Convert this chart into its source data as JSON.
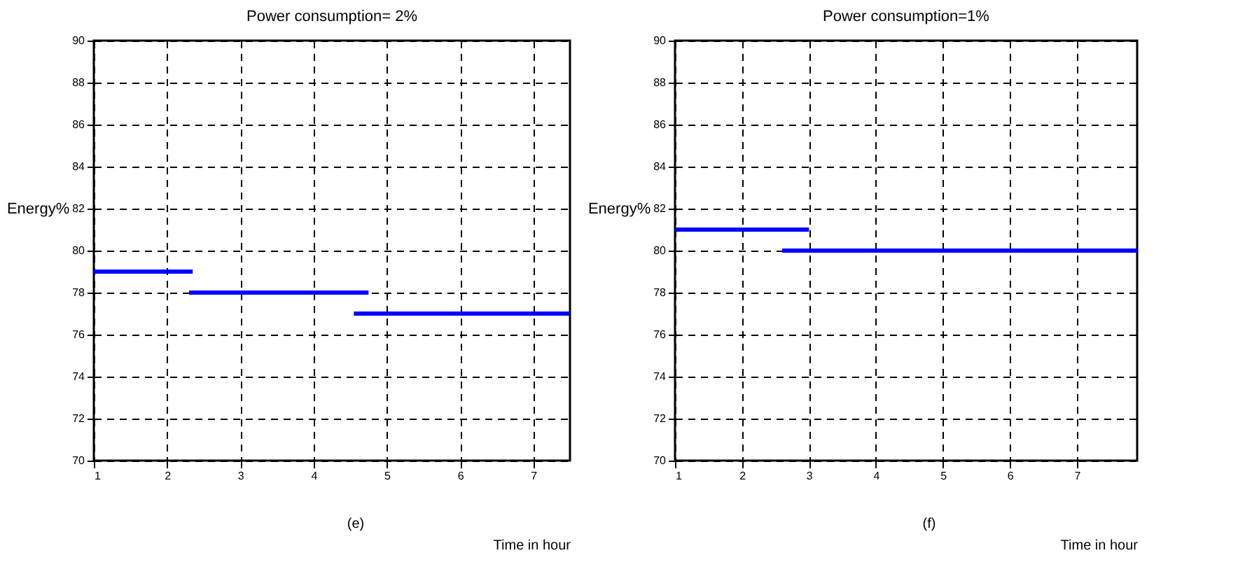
{
  "chart_data": [
    {
      "type": "line",
      "title": "Power consumption= 2%",
      "xlabel": "Time in hour",
      "ylabel": "Energy%",
      "annotations": [
        "(e)"
      ],
      "xlim": [
        1,
        7.5
      ],
      "xticks": [
        1,
        2,
        3,
        4,
        5,
        6,
        7
      ],
      "ylim": [
        70,
        90
      ],
      "yticks": [
        70,
        72,
        74,
        76,
        78,
        80,
        82,
        84,
        86,
        88,
        90
      ],
      "grid": true,
      "line_style": "solid",
      "series": [
        {
          "color": "#0000ff",
          "x": [
            1,
            2.35
          ],
          "values": [
            79,
            79
          ]
        },
        {
          "color": "#0000ff",
          "x": [
            2.3,
            4.75
          ],
          "values": [
            78,
            78
          ]
        },
        {
          "color": "#0000ff",
          "x": [
            4.55,
            7.5
          ],
          "values": [
            77,
            77
          ]
        }
      ]
    },
    {
      "type": "line",
      "title": "Power consumption=1%",
      "xlabel": "Time in hour",
      "ylabel": "Energy%",
      "annotations": [
        "(f)"
      ],
      "xlim": [
        1,
        7.9
      ],
      "xticks": [
        1,
        2,
        3,
        4,
        5,
        6,
        7
      ],
      "ylim": [
        70,
        90
      ],
      "yticks": [
        70,
        72,
        74,
        76,
        78,
        80,
        82,
        84,
        86,
        88,
        90
      ],
      "grid": true,
      "line_style": "solid",
      "series": [
        {
          "color": "#0000ff",
          "x": [
            1,
            3
          ],
          "values": [
            81,
            81
          ]
        },
        {
          "color": "#0000ff",
          "x": [
            2.6,
            7.9
          ],
          "values": [
            80,
            80
          ]
        }
      ]
    }
  ]
}
